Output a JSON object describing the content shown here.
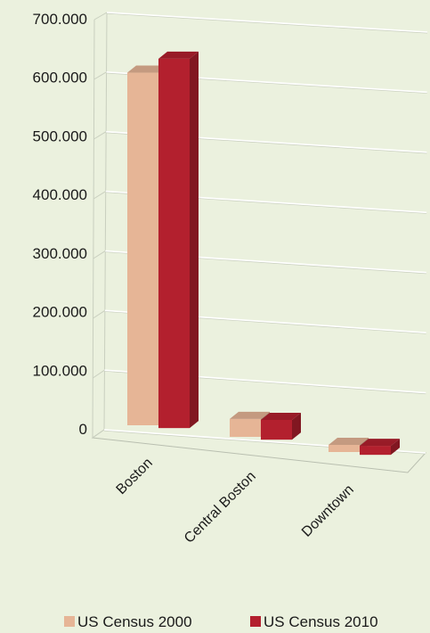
{
  "chart_data": {
    "type": "bar",
    "categories": [
      "Boston",
      "Central Boston",
      "Downtown"
    ],
    "series": [
      {
        "name": "US Census 2000",
        "values": [
          589000,
          30000,
          12000
        ]
      },
      {
        "name": "US Census 2010",
        "values": [
          617000,
          33000,
          15000
        ]
      }
    ],
    "y_ticks": [
      "0",
      "100.000",
      "200.000",
      "300.000",
      "400.000",
      "500.000",
      "600.000",
      "700.000"
    ],
    "ylim": [
      0,
      700000
    ],
    "grid": true,
    "legend_position": "bottom",
    "colors": {
      "US Census 2000": "#e6b596",
      "US Census 2010": "#b3202e",
      "background": "#ebf1de"
    }
  }
}
